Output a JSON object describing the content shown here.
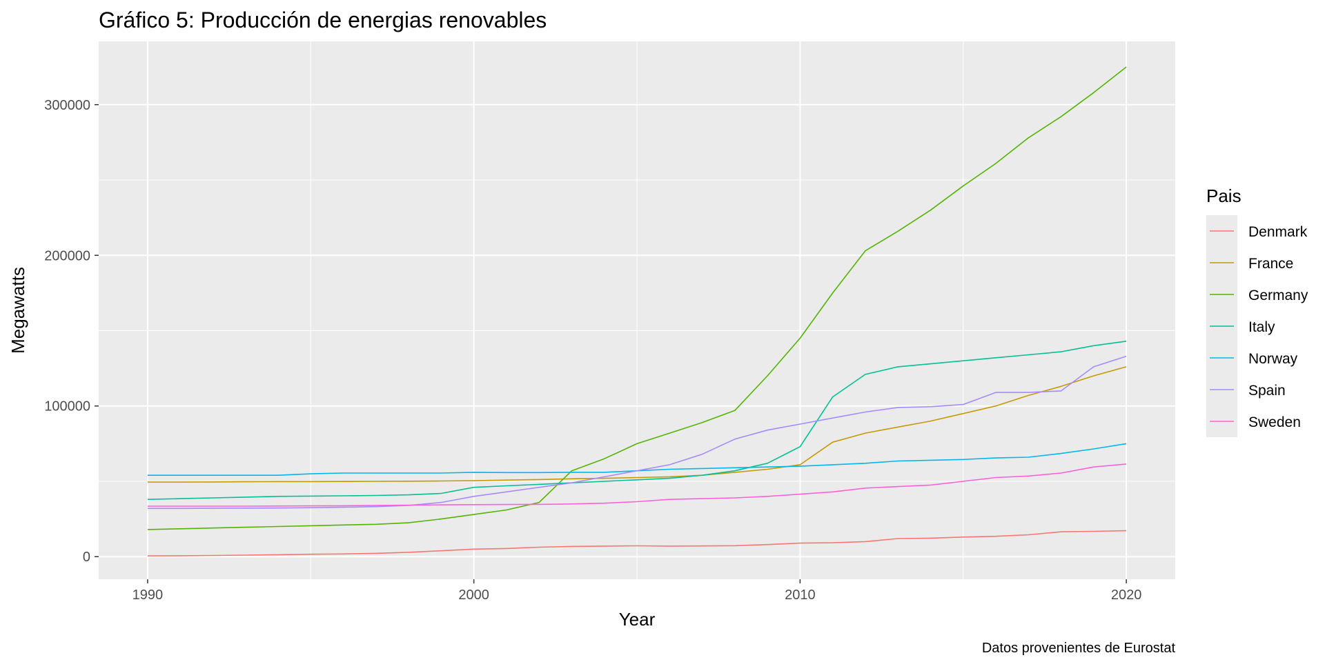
{
  "chart_data": {
    "type": "line",
    "title": "Gráfico 5: Producción de energias renovables",
    "xlabel": "Year",
    "ylabel": "Megawatts",
    "caption": "Datos provenientes de Eurostat",
    "legend_title": "Pais",
    "legend_position": "right",
    "grid": true,
    "xlim": [
      1988.5,
      2021.5
    ],
    "ylim": [
      -15000,
      342000
    ],
    "x_ticks": [
      1990,
      2000,
      2010,
      2020
    ],
    "x_tick_labels": [
      "1990",
      "2000",
      "2010",
      "2020"
    ],
    "y_ticks": [
      0,
      100000,
      200000,
      300000
    ],
    "y_tick_labels": [
      "0",
      "100000",
      "200000",
      "300000"
    ],
    "x": [
      1990,
      1991,
      1992,
      1993,
      1994,
      1995,
      1996,
      1997,
      1998,
      1999,
      2000,
      2001,
      2002,
      2003,
      2004,
      2005,
      2006,
      2007,
      2008,
      2009,
      2010,
      2011,
      2012,
      2013,
      2014,
      2015,
      2016,
      2017,
      2018,
      2019,
      2020
    ],
    "series": [
      {
        "name": "Denmark",
        "color": "#F8766D",
        "values": [
          500,
          600,
          800,
          1000,
          1300,
          1600,
          1800,
          2200,
          2900,
          3900,
          5000,
          5400,
          6300,
          6800,
          7000,
          7200,
          7000,
          7100,
          7300,
          8000,
          9000,
          9200,
          10000,
          12000,
          12300,
          13000,
          13500,
          14500,
          16500,
          16800,
          17200
        ]
      },
      {
        "name": "France",
        "color": "#C49A00",
        "values": [
          49500,
          49500,
          49600,
          49700,
          49800,
          49800,
          49900,
          50000,
          50100,
          50200,
          50400,
          50800,
          51200,
          51700,
          52000,
          52500,
          53000,
          54000,
          56000,
          58000,
          61000,
          76000,
          82000,
          86000,
          90000,
          95000,
          100000,
          107000,
          113000,
          120000,
          126000
        ]
      },
      {
        "name": "Germany",
        "color": "#53B400",
        "values": [
          18000,
          18500,
          19000,
          19500,
          20000,
          20500,
          21000,
          21500,
          22500,
          25000,
          28000,
          31000,
          36000,
          57000,
          65000,
          75000,
          82000,
          89000,
          97000,
          120000,
          145000,
          175000,
          203000,
          216000,
          230000,
          246000,
          261000,
          278000,
          292000,
          308000,
          325000
        ]
      },
      {
        "name": "Italy",
        "color": "#00C094",
        "values": [
          38000,
          38500,
          39000,
          39500,
          40000,
          40200,
          40400,
          40600,
          41000,
          42000,
          46000,
          47000,
          48000,
          49000,
          50000,
          51000,
          52000,
          54000,
          57000,
          62000,
          73000,
          106000,
          121000,
          126000,
          128000,
          130000,
          132000,
          134000,
          136000,
          140000,
          143000
        ]
      },
      {
        "name": "Norway",
        "color": "#00B6EB",
        "values": [
          54000,
          54000,
          54000,
          54000,
          54000,
          55000,
          55500,
          55500,
          55500,
          55500,
          56000,
          55800,
          55800,
          56000,
          56000,
          57000,
          58000,
          58500,
          59000,
          59500,
          60000,
          61000,
          62000,
          63500,
          64000,
          64500,
          65500,
          66000,
          68500,
          71500,
          75000
        ]
      },
      {
        "name": "Spain",
        "color": "#A58AFF",
        "values": [
          32000,
          32000,
          32100,
          32200,
          32300,
          32500,
          32800,
          33200,
          34000,
          36000,
          40000,
          43000,
          46000,
          49000,
          53000,
          57000,
          61000,
          68000,
          78000,
          84000,
          88000,
          92000,
          96000,
          99000,
          99500,
          101000,
          109000,
          109000,
          110000,
          126000,
          133000
        ]
      },
      {
        "name": "Sweden",
        "color": "#FB61D7",
        "values": [
          33500,
          33500,
          33500,
          33500,
          33600,
          33700,
          33800,
          34000,
          34200,
          34400,
          34500,
          34600,
          34700,
          35000,
          35500,
          36500,
          38000,
          38500,
          39000,
          40000,
          41500,
          43000,
          45500,
          46500,
          47500,
          50000,
          52500,
          53500,
          55500,
          59500,
          61500
        ]
      }
    ]
  }
}
